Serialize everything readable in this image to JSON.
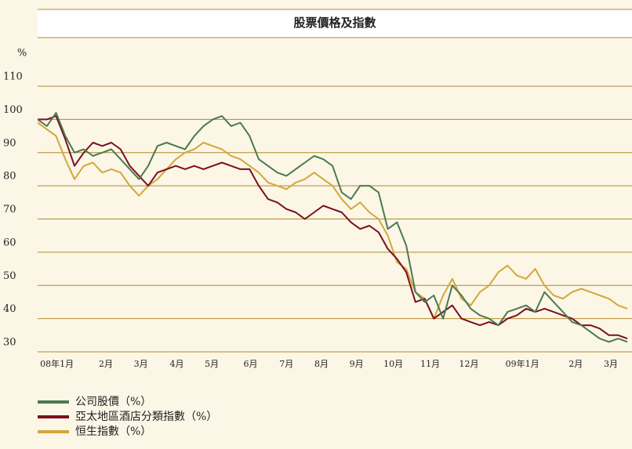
{
  "chart_data": {
    "type": "line",
    "title": "股票價格及指數",
    "y_label": "%",
    "x": [
      0,
      1,
      2,
      3,
      4,
      5,
      6,
      7,
      8,
      9,
      10,
      11,
      12,
      13,
      14,
      15,
      16,
      17,
      18,
      19,
      20,
      21,
      22,
      23,
      24,
      25,
      26,
      27,
      28,
      29,
      30,
      31,
      32,
      33,
      34,
      35,
      36,
      37,
      38,
      39,
      40,
      41,
      42,
      43,
      44,
      45,
      46,
      47,
      48,
      49,
      50,
      51,
      52,
      53,
      54,
      55,
      56,
      57,
      58,
      59,
      60,
      61,
      62,
      63,
      64
    ],
    "xlim": [
      0,
      64.5
    ],
    "xticks": [
      {
        "value": 2.1,
        "label": "08年1月"
      },
      {
        "value": 7.4,
        "label": "2月"
      },
      {
        "value": 11.2,
        "label": "3月"
      },
      {
        "value": 15.1,
        "label": "4月"
      },
      {
        "value": 18.9,
        "label": "5月"
      },
      {
        "value": 23.1,
        "label": "6月"
      },
      {
        "value": 27,
        "label": "7月"
      },
      {
        "value": 30.8,
        "label": "8月"
      },
      {
        "value": 34.6,
        "label": "9月"
      },
      {
        "value": 38.6,
        "label": "10月"
      },
      {
        "value": 42.6,
        "label": "11月"
      },
      {
        "value": 46.8,
        "label": "12月"
      },
      {
        "value": 52.6,
        "label": "09年1月"
      },
      {
        "value": 58.4,
        "label": "2月"
      },
      {
        "value": 62.2,
        "label": "3月"
      }
    ],
    "ylim": [
      30,
      110
    ],
    "yticks": [
      30,
      40,
      50,
      60,
      70,
      80,
      90,
      100,
      110
    ],
    "grid": true,
    "series": [
      {
        "name": "公司股價（%）",
        "color": "#4a7a4e",
        "values": [
          100,
          98,
          102,
          95,
          90,
          91,
          89,
          90,
          91,
          88,
          85,
          82,
          86,
          92,
          93,
          92,
          91,
          95,
          98,
          100,
          101,
          98,
          99,
          95,
          88,
          86,
          84,
          83,
          85,
          87,
          89,
          88,
          86,
          78,
          76,
          80,
          80,
          78,
          67,
          69,
          62,
          48,
          45,
          47,
          40,
          50,
          47,
          43,
          41,
          40,
          38,
          42,
          43,
          44,
          42,
          48,
          45,
          42,
          39,
          38,
          36,
          34,
          33,
          34,
          33
        ]
      },
      {
        "name": "亞太地區酒店分類指數（%）",
        "color": "#7a0f1e",
        "values": [
          100,
          100,
          101,
          94,
          86,
          90,
          93,
          92,
          93,
          91,
          86,
          83,
          80,
          84,
          85,
          86,
          85,
          86,
          85,
          86,
          87,
          86,
          85,
          85,
          80,
          76,
          75,
          73,
          72,
          70,
          72,
          74,
          73,
          72,
          69,
          67,
          68,
          66,
          61,
          58,
          54,
          45,
          46,
          40,
          42,
          44,
          40,
          39,
          38,
          39,
          38,
          40,
          41,
          43,
          42,
          43,
          42,
          41,
          40,
          38,
          38,
          37,
          35,
          35,
          34
        ]
      },
      {
        "name": "恒生指數（%）",
        "color": "#d4a73a",
        "values": [
          99,
          97,
          95,
          88,
          82,
          86,
          87,
          84,
          85,
          84,
          80,
          77,
          80,
          82,
          85,
          88,
          90,
          91,
          93,
          92,
          91,
          89,
          88,
          86,
          84,
          81,
          80,
          79,
          81,
          82,
          84,
          82,
          80,
          76,
          73,
          75,
          72,
          70,
          65,
          57,
          55,
          48,
          46,
          40,
          47,
          52,
          46,
          44,
          48,
          50,
          54,
          56,
          53,
          52,
          55,
          50,
          47,
          46,
          48,
          49,
          48,
          47,
          46,
          44,
          43
        ]
      }
    ]
  }
}
